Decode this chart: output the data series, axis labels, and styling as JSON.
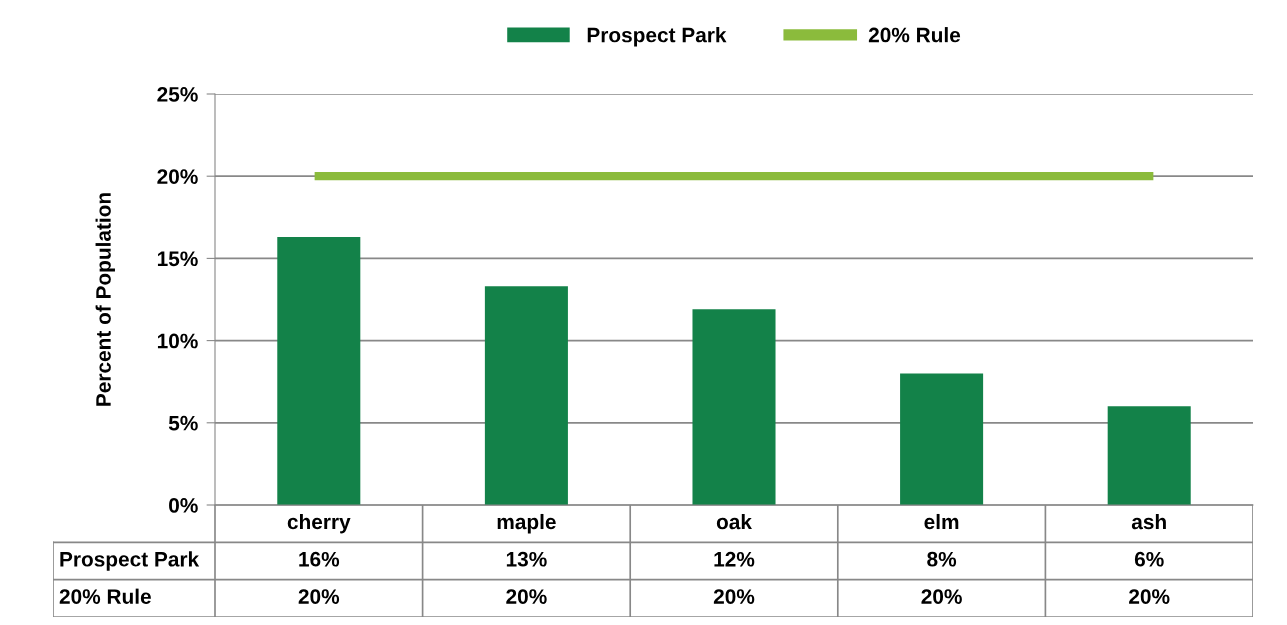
{
  "chart_data": {
    "type": "bar",
    "ylabel": "Percent of Population",
    "categories": [
      "cherry",
      "maple",
      "oak",
      "elm",
      "ash"
    ],
    "series": [
      {
        "name": "Prospect Park",
        "type": "bar",
        "color": "#138249",
        "values": [
          16.3,
          13.3,
          11.9,
          8,
          6
        ],
        "value_labels": [
          "16%",
          "13%",
          "12%",
          "8%",
          "6%"
        ]
      },
      {
        "name": "20% Rule",
        "type": "line",
        "color": "#8bbb3c",
        "values": [
          20,
          20,
          20,
          20,
          20
        ],
        "value_labels": [
          "20%",
          "20%",
          "20%",
          "20%",
          "20%"
        ]
      }
    ],
    "ylim": [
      0,
      25
    ],
    "yticks": [
      {
        "value": 0,
        "label": "0%"
      },
      {
        "value": 5,
        "label": "5%"
      },
      {
        "value": 10,
        "label": "10%"
      },
      {
        "value": 15,
        "label": "15%"
      },
      {
        "value": 20,
        "label": "20%"
      },
      {
        "value": 25,
        "label": "25%"
      }
    ],
    "grid": "y",
    "legend": "top",
    "marker": "none",
    "line_style": "solid"
  }
}
